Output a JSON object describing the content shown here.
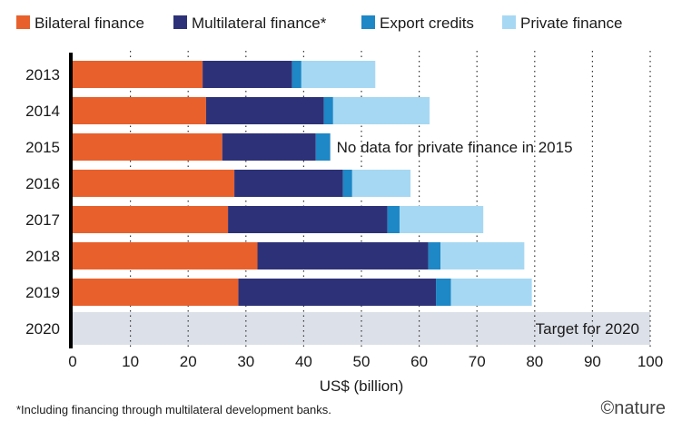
{
  "chart_data": {
    "type": "bar",
    "orientation": "horizontal",
    "stacked": true,
    "categories": [
      "2013",
      "2014",
      "2015",
      "2016",
      "2017",
      "2018",
      "2019",
      "2020"
    ],
    "series": [
      {
        "name": "Bilateral finance",
        "color": "#e8602c",
        "values": [
          22.5,
          23.1,
          25.9,
          28.0,
          26.9,
          32.0,
          28.7,
          null
        ]
      },
      {
        "name": "Multilateral finance*",
        "color": "#2d3278",
        "values": [
          15.5,
          20.4,
          16.2,
          18.8,
          27.6,
          29.6,
          34.2,
          null
        ]
      },
      {
        "name": "Export credits",
        "color": "#1e87c6",
        "values": [
          1.6,
          1.6,
          2.5,
          1.6,
          2.1,
          2.1,
          2.6,
          null
        ]
      },
      {
        "name": "Private finance",
        "color": "#a6d8f3",
        "values": [
          12.8,
          16.7,
          null,
          10.1,
          14.5,
          14.5,
          14.0,
          null
        ]
      }
    ],
    "target": {
      "category": "2020",
      "value": 100,
      "label": "Target for 2020",
      "color": "#dce0e8"
    },
    "annotation": {
      "category": "2015",
      "text": "No data for private finance in 2015"
    },
    "xlabel": "US$ (billion)",
    "ylabel": "",
    "xlim": [
      0,
      100
    ],
    "xticks": [
      0,
      10,
      20,
      30,
      40,
      50,
      60,
      70,
      80,
      90,
      100
    ],
    "grid": "vertical dotted",
    "legend_position": "top",
    "footnote": "*Including financing through multilateral development banks.",
    "brand": "©nature"
  }
}
